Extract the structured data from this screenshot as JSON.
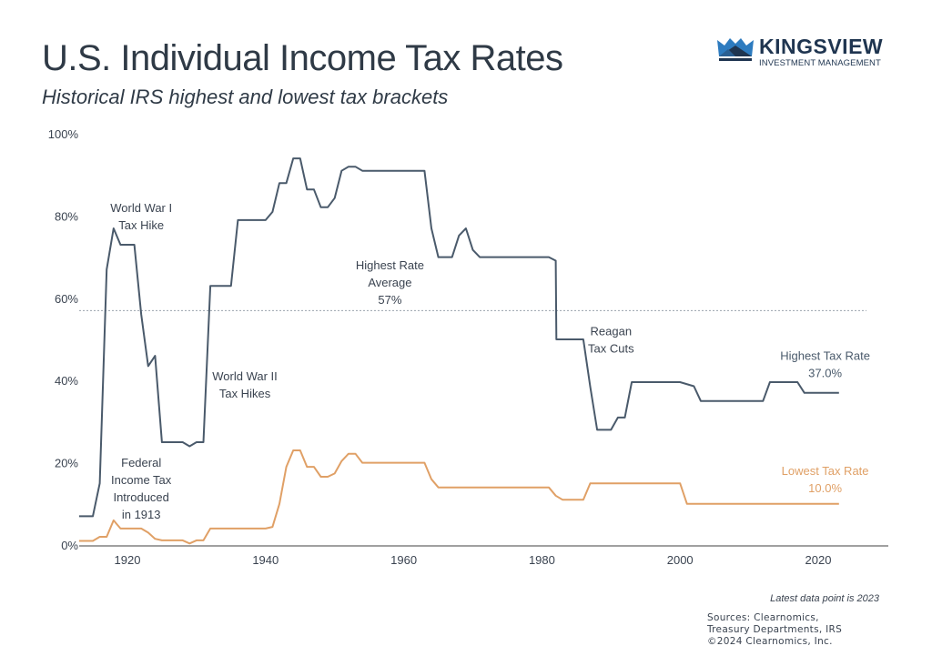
{
  "header": {
    "title": "U.S. Individual Income Tax Rates",
    "subtitle": "Historical IRS highest and lowest tax brackets"
  },
  "logo": {
    "brand": "KINGSVIEW",
    "tagline": "INVESTMENT MANAGEMENT",
    "icon": "crown-icon"
  },
  "footer": {
    "note": "Latest data point is 2023",
    "sources": [
      "Sources: Clearnomics,",
      "Treasury Departments, IRS",
      "©2024 Clearnomics, Inc."
    ]
  },
  "colors": {
    "highest": "#4a5a6b",
    "lowest": "#e0a066",
    "average_line": "#9aa3ad",
    "axis": "#a0a0a0",
    "brand": "#1f3550"
  },
  "chart_data": {
    "type": "line",
    "title": "U.S. Individual Income Tax Rates",
    "subtitle": "Historical IRS highest and lowest tax brackets",
    "xlabel": "",
    "ylabel": "",
    "xlim": [
      1913,
      2030
    ],
    "ylim": [
      0,
      100
    ],
    "x_ticks": [
      1920,
      1940,
      1960,
      1980,
      2000,
      2020
    ],
    "x_tick_labels": [
      "1920",
      "1940",
      "1960",
      "1980",
      "2000",
      "2020"
    ],
    "y_ticks": [
      0,
      20,
      40,
      60,
      80,
      100
    ],
    "y_tick_labels": [
      "0%",
      "20%",
      "40%",
      "60%",
      "80%",
      "100%"
    ],
    "grid": false,
    "series": [
      {
        "name": "Highest Tax Rate",
        "label": "Highest Tax Rate",
        "value_label": "37.0%",
        "points": [
          [
            1913,
            7
          ],
          [
            1915,
            7
          ],
          [
            1916,
            15
          ],
          [
            1917,
            67
          ],
          [
            1918,
            77
          ],
          [
            1919,
            73
          ],
          [
            1921,
            73
          ],
          [
            1922,
            56
          ],
          [
            1923,
            43.5
          ],
          [
            1924,
            46
          ],
          [
            1925,
            25
          ],
          [
            1928,
            25
          ],
          [
            1929,
            24
          ],
          [
            1930,
            25
          ],
          [
            1931,
            25
          ],
          [
            1932,
            63
          ],
          [
            1935,
            63
          ],
          [
            1936,
            79
          ],
          [
            1940,
            79
          ],
          [
            1941,
            81
          ],
          [
            1942,
            88
          ],
          [
            1943,
            88
          ],
          [
            1944,
            94
          ],
          [
            1945,
            94
          ],
          [
            1946,
            86.45
          ],
          [
            1947,
            86.45
          ],
          [
            1948,
            82.13
          ],
          [
            1949,
            82.13
          ],
          [
            1950,
            84.36
          ],
          [
            1951,
            91
          ],
          [
            1952,
            92
          ],
          [
            1953,
            92
          ],
          [
            1954,
            91
          ],
          [
            1963,
            91
          ],
          [
            1964,
            77
          ],
          [
            1965,
            70
          ],
          [
            1967,
            70
          ],
          [
            1968,
            75.25
          ],
          [
            1969,
            77
          ],
          [
            1970,
            71.75
          ],
          [
            1971,
            70
          ],
          [
            1981,
            70
          ],
          [
            1982,
            69.13
          ],
          [
            1982.1,
            50
          ],
          [
            1986,
            50
          ],
          [
            1987,
            38.5
          ],
          [
            1988,
            28
          ],
          [
            1990,
            28
          ],
          [
            1991,
            31
          ],
          [
            1992,
            31
          ],
          [
            1993,
            39.6
          ],
          [
            2000,
            39.6
          ],
          [
            2002,
            38.6
          ],
          [
            2003,
            35
          ],
          [
            2012,
            35
          ],
          [
            2013,
            39.6
          ],
          [
            2017,
            39.6
          ],
          [
            2018,
            37
          ],
          [
            2023,
            37
          ]
        ]
      },
      {
        "name": "Lowest Tax Rate",
        "label": "Lowest Tax Rate",
        "value_label": "10.0%",
        "points": [
          [
            1913,
            1
          ],
          [
            1915,
            1
          ],
          [
            1916,
            2
          ],
          [
            1917,
            2
          ],
          [
            1918,
            6
          ],
          [
            1919,
            4
          ],
          [
            1922,
            4
          ],
          [
            1923,
            3
          ],
          [
            1924,
            1.5
          ],
          [
            1925,
            1.125
          ],
          [
            1928,
            1.125
          ],
          [
            1929,
            0.375
          ],
          [
            1930,
            1.125
          ],
          [
            1931,
            1.125
          ],
          [
            1932,
            4
          ],
          [
            1940,
            4
          ],
          [
            1941,
            4.4
          ],
          [
            1942,
            10
          ],
          [
            1943,
            19
          ],
          [
            1944,
            23
          ],
          [
            1945,
            23
          ],
          [
            1946,
            19
          ],
          [
            1947,
            19
          ],
          [
            1948,
            16.6
          ],
          [
            1949,
            16.6
          ],
          [
            1950,
            17.4
          ],
          [
            1951,
            20.4
          ],
          [
            1952,
            22.2
          ],
          [
            1953,
            22.2
          ],
          [
            1954,
            20
          ],
          [
            1963,
            20
          ],
          [
            1964,
            16
          ],
          [
            1965,
            14
          ],
          [
            1981,
            14
          ],
          [
            1982,
            12
          ],
          [
            1983,
            11
          ],
          [
            1986,
            11
          ],
          [
            1987,
            15
          ],
          [
            2000,
            15
          ],
          [
            2001,
            10
          ],
          [
            2023,
            10
          ]
        ]
      }
    ],
    "reference_lines": [
      {
        "name": "Highest Rate Average",
        "value": 57,
        "style": "dotted"
      }
    ],
    "annotations": [
      {
        "lines": [
          "World War I",
          "Tax Hike"
        ],
        "x": 1922,
        "y": 81
      },
      {
        "lines": [
          "World War II",
          "Tax Hikes"
        ],
        "x": 1937,
        "y": 40
      },
      {
        "lines": [
          "Federal",
          "Income Tax",
          "Introduced",
          "in 1913"
        ],
        "x": 1922,
        "y": 19
      },
      {
        "lines": [
          "Highest Rate",
          "Average",
          "57%"
        ],
        "x": 1958,
        "y": 67
      },
      {
        "lines": [
          "Reagan",
          "Tax Cuts"
        ],
        "x": 1990,
        "y": 51
      },
      {
        "lines": [
          "Highest Tax Rate",
          "37.0%"
        ],
        "x": 2021,
        "y": 45,
        "color_key": "highest"
      },
      {
        "lines": [
          "Lowest Tax Rate",
          "10.0%"
        ],
        "x": 2021,
        "y": 17,
        "color_key": "lowest"
      }
    ],
    "legend": "none (inline labels at right)"
  }
}
